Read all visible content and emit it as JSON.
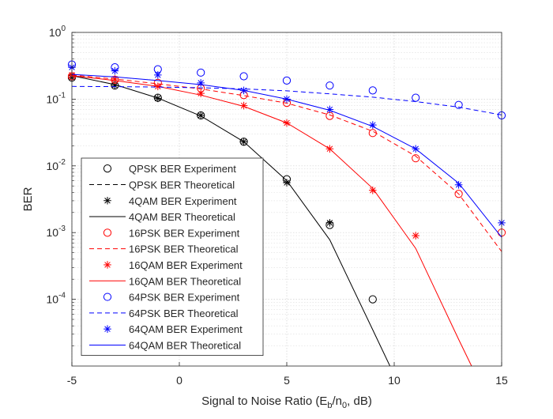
{
  "chart_data": {
    "type": "line",
    "title": "",
    "xlabel_parts": {
      "pre": "Signal to Noise Ratio (E",
      "sub1": "b",
      "mid": "/n",
      "sub2": "0",
      "post": ", dB)"
    },
    "ylabel": "BER",
    "xlim": [
      -5,
      15
    ],
    "ylim": [
      1e-05,
      1
    ],
    "yscale": "log",
    "grid": true,
    "minor_grid": true,
    "legend_location": "bottom-left",
    "xticks": [
      -5,
      0,
      5,
      10,
      15
    ],
    "xtick_labels": [
      "-5",
      "0",
      "5",
      "10",
      "15"
    ],
    "yticks": [
      {
        "value": 1,
        "base": "10",
        "exp": "0"
      },
      {
        "value": 0.1,
        "base": "10",
        "exp": "-1"
      },
      {
        "value": 0.01,
        "base": "10",
        "exp": "-2"
      },
      {
        "value": 0.001,
        "base": "10",
        "exp": "-3"
      },
      {
        "value": 0.0001,
        "base": "10",
        "exp": "-4"
      }
    ],
    "series": [
      {
        "name": "QPSK BER Experiment",
        "kind": "marker",
        "marker": "circle",
        "color": "#000000",
        "x": [
          -5,
          -3,
          -1,
          1,
          3,
          5,
          7,
          9
        ],
        "y": [
          0.21,
          0.16,
          0.105,
          0.057,
          0.023,
          0.0063,
          0.0013,
          0.0001
        ]
      },
      {
        "name": "QPSK BER Theoretical",
        "kind": "line",
        "dash": "6,4",
        "color": "#000000",
        "x": [
          -5,
          15
        ],
        "y": [
          null,
          null
        ]
      },
      {
        "name": "4QAM BER Experiment",
        "kind": "marker",
        "marker": "star",
        "color": "#000000",
        "x": [
          -5,
          -3,
          -1,
          1,
          3,
          5,
          7
        ],
        "y": [
          0.21,
          0.16,
          0.103,
          0.057,
          0.023,
          0.0056,
          0.0014
        ]
      },
      {
        "name": "4QAM BER Theoretical",
        "kind": "line",
        "dash": "",
        "color": "#000000",
        "x": [
          -5,
          -3,
          -1,
          1,
          3,
          5,
          7,
          9,
          9.8
        ],
        "y": [
          0.225,
          0.165,
          0.104,
          0.056,
          0.023,
          0.006,
          0.00078,
          3.5e-05,
          1e-05
        ]
      },
      {
        "name": "16PSK BER Experiment",
        "kind": "marker",
        "marker": "circle",
        "color": "#ff0000",
        "x": [
          -5,
          -3,
          -1,
          1,
          3,
          5,
          7,
          9,
          11,
          13,
          15
        ],
        "y": [
          0.22,
          0.195,
          0.175,
          0.145,
          0.115,
          0.088,
          0.056,
          0.031,
          0.013,
          0.0038,
          0.001
        ]
      },
      {
        "name": "16PSK BER Theoretical",
        "kind": "line",
        "dash": "6,4",
        "color": "#ff0000",
        "x": [
          -5,
          -3,
          -1,
          1,
          3,
          5,
          7,
          9,
          11,
          13,
          15
        ],
        "y": [
          0.23,
          0.2,
          0.17,
          0.142,
          0.113,
          0.087,
          0.058,
          0.033,
          0.014,
          0.0038,
          0.00052
        ]
      },
      {
        "name": "16QAM BER Experiment",
        "kind": "marker",
        "marker": "star",
        "color": "#ff0000",
        "x": [
          -5,
          -3,
          -1,
          1,
          3,
          5,
          7,
          9,
          11
        ],
        "y": [
          0.23,
          0.2,
          0.155,
          0.122,
          0.08,
          0.044,
          0.018,
          0.0043,
          0.0009
        ]
      },
      {
        "name": "16QAM BER Theoretical",
        "kind": "line",
        "dash": "",
        "color": "#ff0000",
        "x": [
          -5,
          -3,
          -1,
          1,
          3,
          5,
          7,
          9,
          11,
          13,
          13.6
        ],
        "y": [
          0.225,
          0.19,
          0.155,
          0.115,
          0.078,
          0.044,
          0.018,
          0.0046,
          0.00058,
          2.5e-05,
          1e-05
        ]
      },
      {
        "name": "64PSK BER Experiment",
        "kind": "marker",
        "marker": "circle",
        "color": "#0000ff",
        "x": [
          -5,
          -3,
          -1,
          1,
          3,
          5,
          7,
          9,
          11,
          13,
          15
        ],
        "y": [
          0.33,
          0.3,
          0.28,
          0.25,
          0.22,
          0.19,
          0.16,
          0.135,
          0.105,
          0.082,
          0.057
        ]
      },
      {
        "name": "64PSK BER Theoretical",
        "kind": "line",
        "dash": "6,4",
        "color": "#0000ff",
        "x": [
          -5,
          -3,
          -1,
          1,
          3,
          5,
          7,
          9,
          11,
          13,
          15
        ],
        "y": [
          0.155,
          0.154,
          0.152,
          0.148,
          0.142,
          0.133,
          0.12,
          0.107,
          0.092,
          0.076,
          0.058
        ]
      },
      {
        "name": "64QAM BER Experiment",
        "kind": "marker",
        "marker": "star",
        "color": "#0000ff",
        "x": [
          -5,
          -3,
          -1,
          1,
          3,
          5,
          7,
          9,
          11,
          13,
          15
        ],
        "y": [
          0.3,
          0.265,
          0.23,
          0.175,
          0.135,
          0.1,
          0.07,
          0.041,
          0.018,
          0.0052,
          0.0014
        ]
      },
      {
        "name": "64QAM BER Theoretical",
        "kind": "line",
        "dash": "",
        "color": "#0000ff",
        "x": [
          -5,
          -3,
          -1,
          1,
          3,
          5,
          7,
          9,
          11,
          13,
          15
        ],
        "y": [
          0.235,
          0.215,
          0.19,
          0.165,
          0.135,
          0.1,
          0.068,
          0.039,
          0.018,
          0.0055,
          0.00085
        ]
      }
    ]
  }
}
